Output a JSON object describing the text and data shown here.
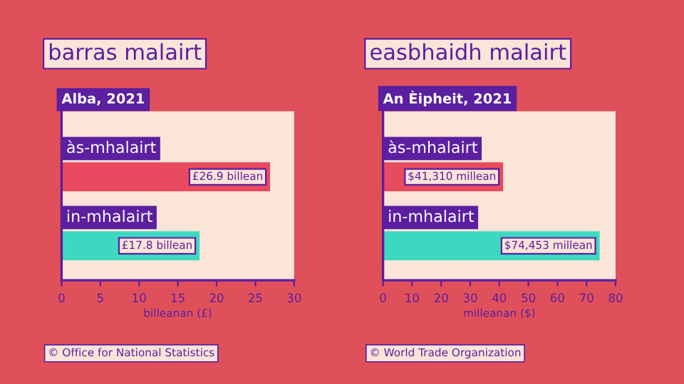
{
  "chart_data": [
    {
      "type": "bar",
      "orientation": "horizontal",
      "title": "barras malairt",
      "subtitle": "Alba, 2021",
      "xlabel": "billeanan (£)",
      "categories": [
        "às-mhalairt",
        "in-mhalairt"
      ],
      "values": [
        26.9,
        17.8
      ],
      "colors": [
        "#e84a5f",
        "#3dd8c0"
      ],
      "value_labels": [
        "£26.9 billean",
        "£17.8 billean"
      ],
      "xlim": [
        0,
        30
      ],
      "xticks": [
        0,
        5,
        10,
        15,
        20,
        25,
        30
      ],
      "grid": false,
      "legend": false,
      "annotations": [
        "© Office for National Statistics"
      ]
    },
    {
      "type": "bar",
      "orientation": "horizontal",
      "title": "easbhaidh malairt",
      "subtitle": "An Èipheit, 2021",
      "xlabel": "milleanan ($)",
      "categories": [
        "às-mhalairt",
        "in-mhalairt"
      ],
      "values": [
        41.3,
        74.5
      ],
      "colors": [
        "#e84a5f",
        "#3dd8c0"
      ],
      "xlim": [
        0,
        80
      ],
      "xticks": [
        0,
        10,
        20,
        30,
        40,
        50,
        60,
        70,
        80
      ],
      "grid": false,
      "legend": false,
      "annotations": [
        {
          "text": "$41,310 millean",
          "x": 41.3,
          "y": "às-mhalairt"
        },
        {
          "text": "$74,453 millean",
          "x": 74.5,
          "y": "in-mhalairt"
        },
        "© World Trade Organization"
      ]
    }
  ]
}
